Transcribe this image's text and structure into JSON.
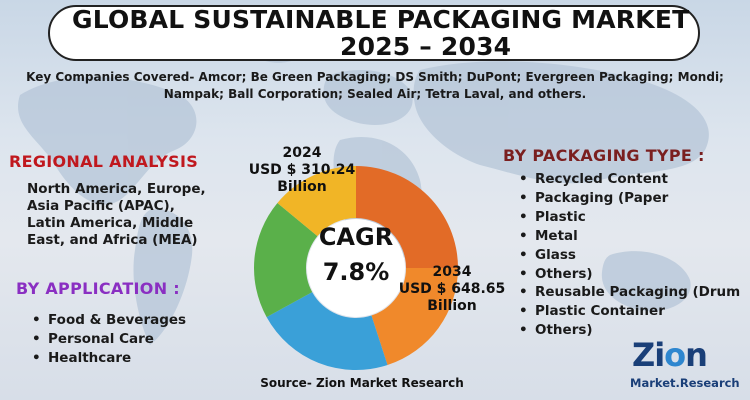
{
  "title": {
    "line1": "GLOBAL SUSTAINABLE PACKAGING MARKET",
    "line2": "2025 – 2034"
  },
  "companies": "Key Companies Covered- Amcor; Be Green Packaging; DS Smith; DuPont; Evergreen Packaging; Mondi; Nampak; Ball Corporation; Sealed Air; Tetra Laval, and others.",
  "regional": {
    "title": "REGIONAL ANALYSIS",
    "text": "North America, Europe, Asia Pacific (APAC), Latin America, Middle East, and Africa (MEA)"
  },
  "application": {
    "title": "BY APPLICATION :",
    "items": [
      "Food & Beverages",
      "Personal Care",
      "Healthcare"
    ]
  },
  "packaging": {
    "title": "BY PACKAGING TYPE :",
    "items": [
      "Recycled Content",
      "Packaging (Paper",
      "Plastic",
      "Metal",
      "Glass",
      "Others)",
      "Reusable Packaging (Drum",
      "Plastic Container",
      "Others)"
    ]
  },
  "chart_data": {
    "type": "pie",
    "style": "donut",
    "title": "",
    "center_label": "CAGR",
    "center_value": "7.8%",
    "slices": [
      {
        "color": "#e26b27",
        "value": 25
      },
      {
        "color": "#f0892b",
        "value": 20
      },
      {
        "color": "#3aa0d8",
        "value": 22
      },
      {
        "color": "#5ab04a",
        "value": 19
      },
      {
        "color": "#f1b526",
        "value": 14
      }
    ],
    "annotations": {
      "start": {
        "year": "2024",
        "value": "USD $ 310.24",
        "unit": "Billion"
      },
      "end": {
        "year": "2034",
        "value": "USD $ 648.65",
        "unit": "Billion"
      }
    }
  },
  "source": "Source- Zion Market Research",
  "logo": {
    "word_left": "Zi",
    "word_o": "o",
    "word_right": "n",
    "sub": "Market.Research"
  },
  "colors": {
    "regional_title": "#c0181e",
    "application_title": "#8a2fc2",
    "packaging_title": "#7a1f1f",
    "logo": "#1a3f78"
  }
}
